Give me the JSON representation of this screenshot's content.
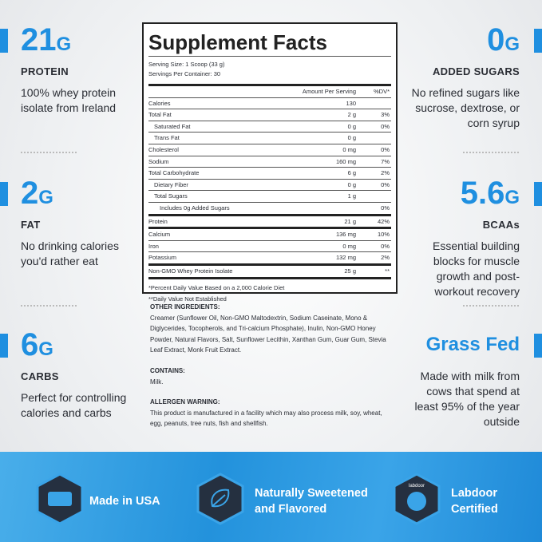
{
  "left_stats": [
    {
      "value": "21",
      "unit": "G",
      "label": "PROTEIN",
      "description": "100% whey protein isolate from Ireland"
    },
    {
      "value": "2",
      "unit": "G",
      "label": "FAT",
      "description": "No drinking calories you'd rather eat"
    },
    {
      "value": "6",
      "unit": "G",
      "label": "CARBS",
      "description": "Perfect for controlling calories and carbs"
    }
  ],
  "right_stats": [
    {
      "value": "0",
      "unit": "G",
      "label": "ADDED SUGARS",
      "description": "No refined sugars like sucrose, dextrose, or corn syrup"
    },
    {
      "value": "5.6",
      "unit": "G",
      "label": "BCAAs",
      "description": "Essential building blocks for muscle growth and post-workout recovery"
    },
    {
      "value": "Grass Fed",
      "description": "Made with milk from cows that spend at least 95% of the year outside"
    }
  ],
  "facts": {
    "title": "Supplement Facts",
    "serving_size": "Serving Size: 1 Scoop (33 g)",
    "servings": "Servings Per Container: 30",
    "header_amount": "Amount Per Serving",
    "header_dv": "%DV*",
    "rows": [
      {
        "name": "Calories",
        "amount": "130"
      },
      {
        "name": "Total Fat",
        "amount": "2 g",
        "dv": "3%"
      },
      {
        "name": "Saturated Fat",
        "amount": "0 g",
        "dv": "0%"
      },
      {
        "name": "Trans Fat",
        "amount": "0 g"
      },
      {
        "name": "Cholesterol",
        "amount": "0 mg",
        "dv": "0%"
      },
      {
        "name": "Sodium",
        "amount": "160 mg",
        "dv": "7%"
      },
      {
        "name": "Total Carbohydrate",
        "amount": "6 g",
        "dv": "2%"
      },
      {
        "name": "Dietary Fiber",
        "amount": "0 g",
        "dv": "0%"
      },
      {
        "name": "Total Sugars",
        "amount": "1 g"
      },
      {
        "name": "Includes 0g Added Sugars",
        "dv": "0%"
      },
      {
        "name": "Protein",
        "amount": "21 g",
        "dv": "42%"
      },
      {
        "name": "Calcium",
        "amount": "136 mg",
        "dv": "10%"
      },
      {
        "name": "Iron",
        "amount": "0 mg",
        "dv": "0%"
      },
      {
        "name": "Potassium",
        "amount": "132 mg",
        "dv": "2%"
      },
      {
        "name": "Non-GMO Whey Protein Isolate",
        "amount": "25 g",
        "dv": "**"
      }
    ],
    "footnotes": [
      "*Percent Daily Value Based on a 2,000 Calorie Diet",
      "**Daily Value Not Established"
    ]
  },
  "ingredients": {
    "other_heading": "OTHER INGREDIENTS:",
    "other_text": "Creamer (Sunflower Oil, Non-GMO Maltodextrin, Sodium Caseinate, Mono & Diglycerides, Tocopherols, and Tri-calcium Phosphate), Inulin, Non-GMO Honey Powder, Natural Flavors, Salt, Sunflower Lecithin, Xanthan Gum, Guar Gum, Stevia Leaf Extract, Monk Fruit Extract.",
    "contains_heading": "CONTAINS:",
    "contains_text": "Milk.",
    "allergen_heading": "ALLERGEN WARNING:",
    "allergen_text": "This product is manufactured in a facility which may also process milk, soy, wheat, egg, peanuts, tree nuts, fish and shellfish."
  },
  "badges": [
    {
      "label": "Made in USA"
    },
    {
      "label": "Naturally Sweetened and Flavored"
    },
    {
      "label": "Labdoor Certified",
      "icon_text": "labdoor"
    }
  ]
}
